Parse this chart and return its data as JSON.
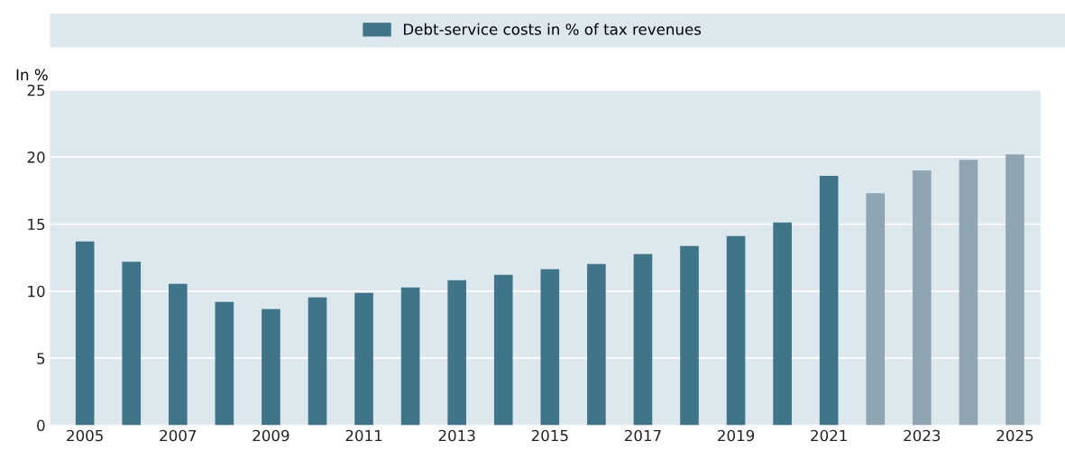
{
  "chart_data": {
    "type": "bar",
    "ylabel": "In %",
    "categories": [
      "2005",
      null,
      "2007",
      null,
      "2009",
      null,
      "2011",
      null,
      "2013",
      null,
      "2015",
      null,
      "2017",
      null,
      "2019",
      null,
      "2021",
      null,
      "2023",
      null,
      "2025"
    ],
    "series": [
      {
        "name": "Debt-service costs in % of tax revenues",
        "color": "#3f7489",
        "values": [
          13.7,
          12.2,
          10.55,
          9.2,
          8.67,
          9.54,
          9.88,
          10.28,
          10.82,
          11.22,
          11.63,
          12.03,
          12.77,
          13.37,
          14.11,
          15.12,
          18.6,
          17.3,
          19.0,
          19.8,
          20.2
        ],
        "colors": [
          "#3f7489",
          "#3f7489",
          "#3f7489",
          "#3f7489",
          "#3f7489",
          "#3f7489",
          "#3f7489",
          "#3f7489",
          "#3f7489",
          "#3f7489",
          "#3f7489",
          "#3f7489",
          "#3f7489",
          "#3f7489",
          "#3f7489",
          "#3f7489",
          "#3f7489",
          "#8fa5b1",
          "#8fa5b1",
          "#8fa5b1",
          "#8fa5b1"
        ]
      }
    ],
    "ylim": [
      0,
      25
    ],
    "yticks": [
      0,
      5,
      10,
      15,
      20,
      25
    ],
    "grid": "y",
    "legend": "top"
  }
}
